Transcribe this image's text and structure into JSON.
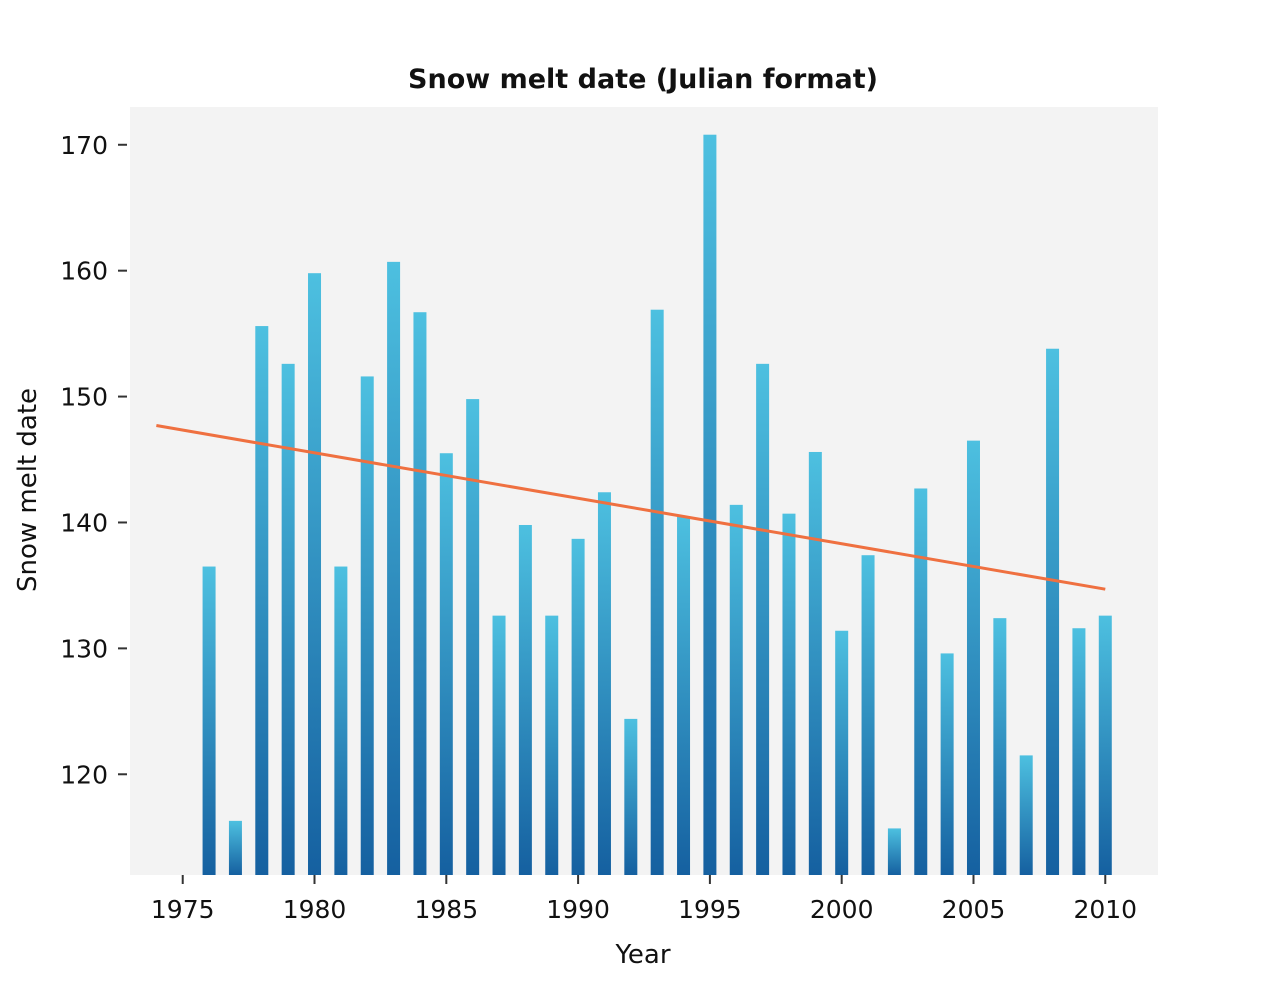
{
  "chart_data": {
    "type": "bar",
    "title": "Snow melt date (Julian format)",
    "xlabel": "Year",
    "ylabel": "Snow melt date",
    "xlim": [
      1973,
      2012
    ],
    "ylim": [
      112,
      173
    ],
    "x_ticks": [
      1975,
      1980,
      1985,
      1990,
      1995,
      2000,
      2005,
      2010
    ],
    "y_ticks": [
      120,
      130,
      140,
      150,
      160,
      170
    ],
    "grid": false,
    "background": "#f3f3f3",
    "bar_color_top": "#4dc0e0",
    "bar_color_bottom": "#1560a0",
    "trend_color": "#ef7040",
    "series": [
      {
        "type": "bar",
        "x": [
          1976,
          1977,
          1978,
          1979,
          1980,
          1981,
          1982,
          1983,
          1984,
          1985,
          1986,
          1987,
          1988,
          1989,
          1990,
          1991,
          1992,
          1993,
          1994,
          1995,
          1996,
          1997,
          1998,
          1999,
          2000,
          2001,
          2002,
          2003,
          2004,
          2005,
          2006,
          2007,
          2008,
          2009,
          2010
        ],
        "values": [
          136.5,
          116.3,
          155.6,
          152.6,
          159.8,
          136.5,
          151.6,
          160.7,
          156.7,
          145.5,
          149.8,
          132.6,
          139.8,
          132.6,
          138.7,
          142.4,
          124.4,
          156.9,
          140.5,
          170.8,
          141.4,
          152.6,
          140.7,
          145.6,
          131.4,
          137.4,
          115.7,
          142.7,
          129.6,
          146.5,
          132.4,
          121.5,
          153.8,
          131.6,
          132.6
        ]
      },
      {
        "type": "line",
        "x": [
          1974,
          2010
        ],
        "values": [
          147.7,
          134.7
        ]
      }
    ]
  }
}
